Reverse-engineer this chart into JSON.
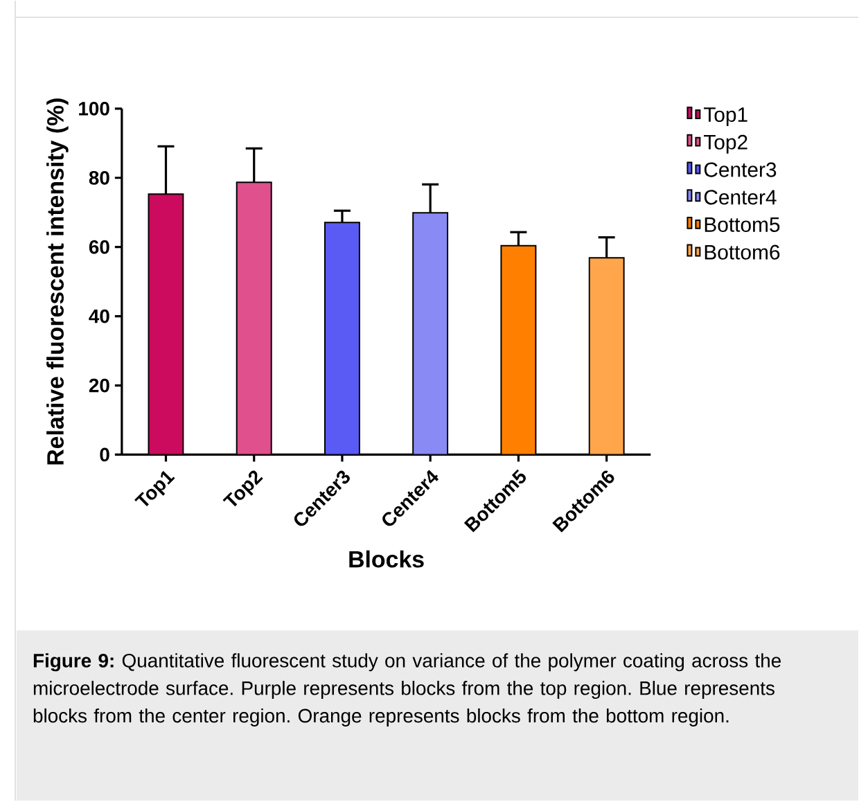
{
  "chart_data": {
    "type": "bar",
    "xlabel": "Blocks",
    "ylabel": "Relative fluorescent intensity (%)",
    "categories": [
      "Top1",
      "Top2",
      "Center3",
      "Center4",
      "Bottom5",
      "Bottom6"
    ],
    "series": [
      {
        "name": "Top1",
        "color": "#cc0a5e",
        "values": [
          75.3,
          null,
          null,
          null,
          null,
          null
        ],
        "errors": [
          13.8,
          null,
          null,
          null,
          null,
          null
        ]
      },
      {
        "name": "Top2",
        "color": "#e0508c",
        "values": [
          null,
          78.7,
          null,
          null,
          null,
          null
        ],
        "errors": [
          null,
          9.8,
          null,
          null,
          null,
          null
        ]
      },
      {
        "name": "Center3",
        "color": "#5a5af5",
        "values": [
          null,
          null,
          67.1,
          null,
          null,
          null
        ],
        "errors": [
          null,
          null,
          3.4,
          null,
          null,
          null
        ]
      },
      {
        "name": "Center4",
        "color": "#8a8af5",
        "values": [
          null,
          null,
          null,
          69.9,
          null,
          null
        ],
        "errors": [
          null,
          null,
          null,
          8.2,
          null,
          null
        ]
      },
      {
        "name": "Bottom5",
        "color": "#ff8000",
        "values": [
          null,
          null,
          null,
          null,
          60.4,
          null
        ],
        "errors": [
          null,
          null,
          null,
          null,
          3.9,
          null
        ]
      },
      {
        "name": "Bottom6",
        "color": "#ffa64d",
        "values": [
          null,
          null,
          null,
          null,
          null,
          56.9
        ],
        "errors": [
          null,
          null,
          null,
          null,
          null,
          5.9
        ]
      }
    ],
    "ylim": [
      0,
      100
    ],
    "yticks": [
      0,
      20,
      40,
      60,
      80,
      100
    ],
    "grid": false,
    "legend": "right",
    "annotations": [
      "**Figure 9:** Quantitative fluorescent study on variance of the polymer coating across the microelectrode surface. Purple represents blocks from the top region. Blue represents blocks from the center region. Orange represents blocks from the bottom region."
    ]
  }
}
